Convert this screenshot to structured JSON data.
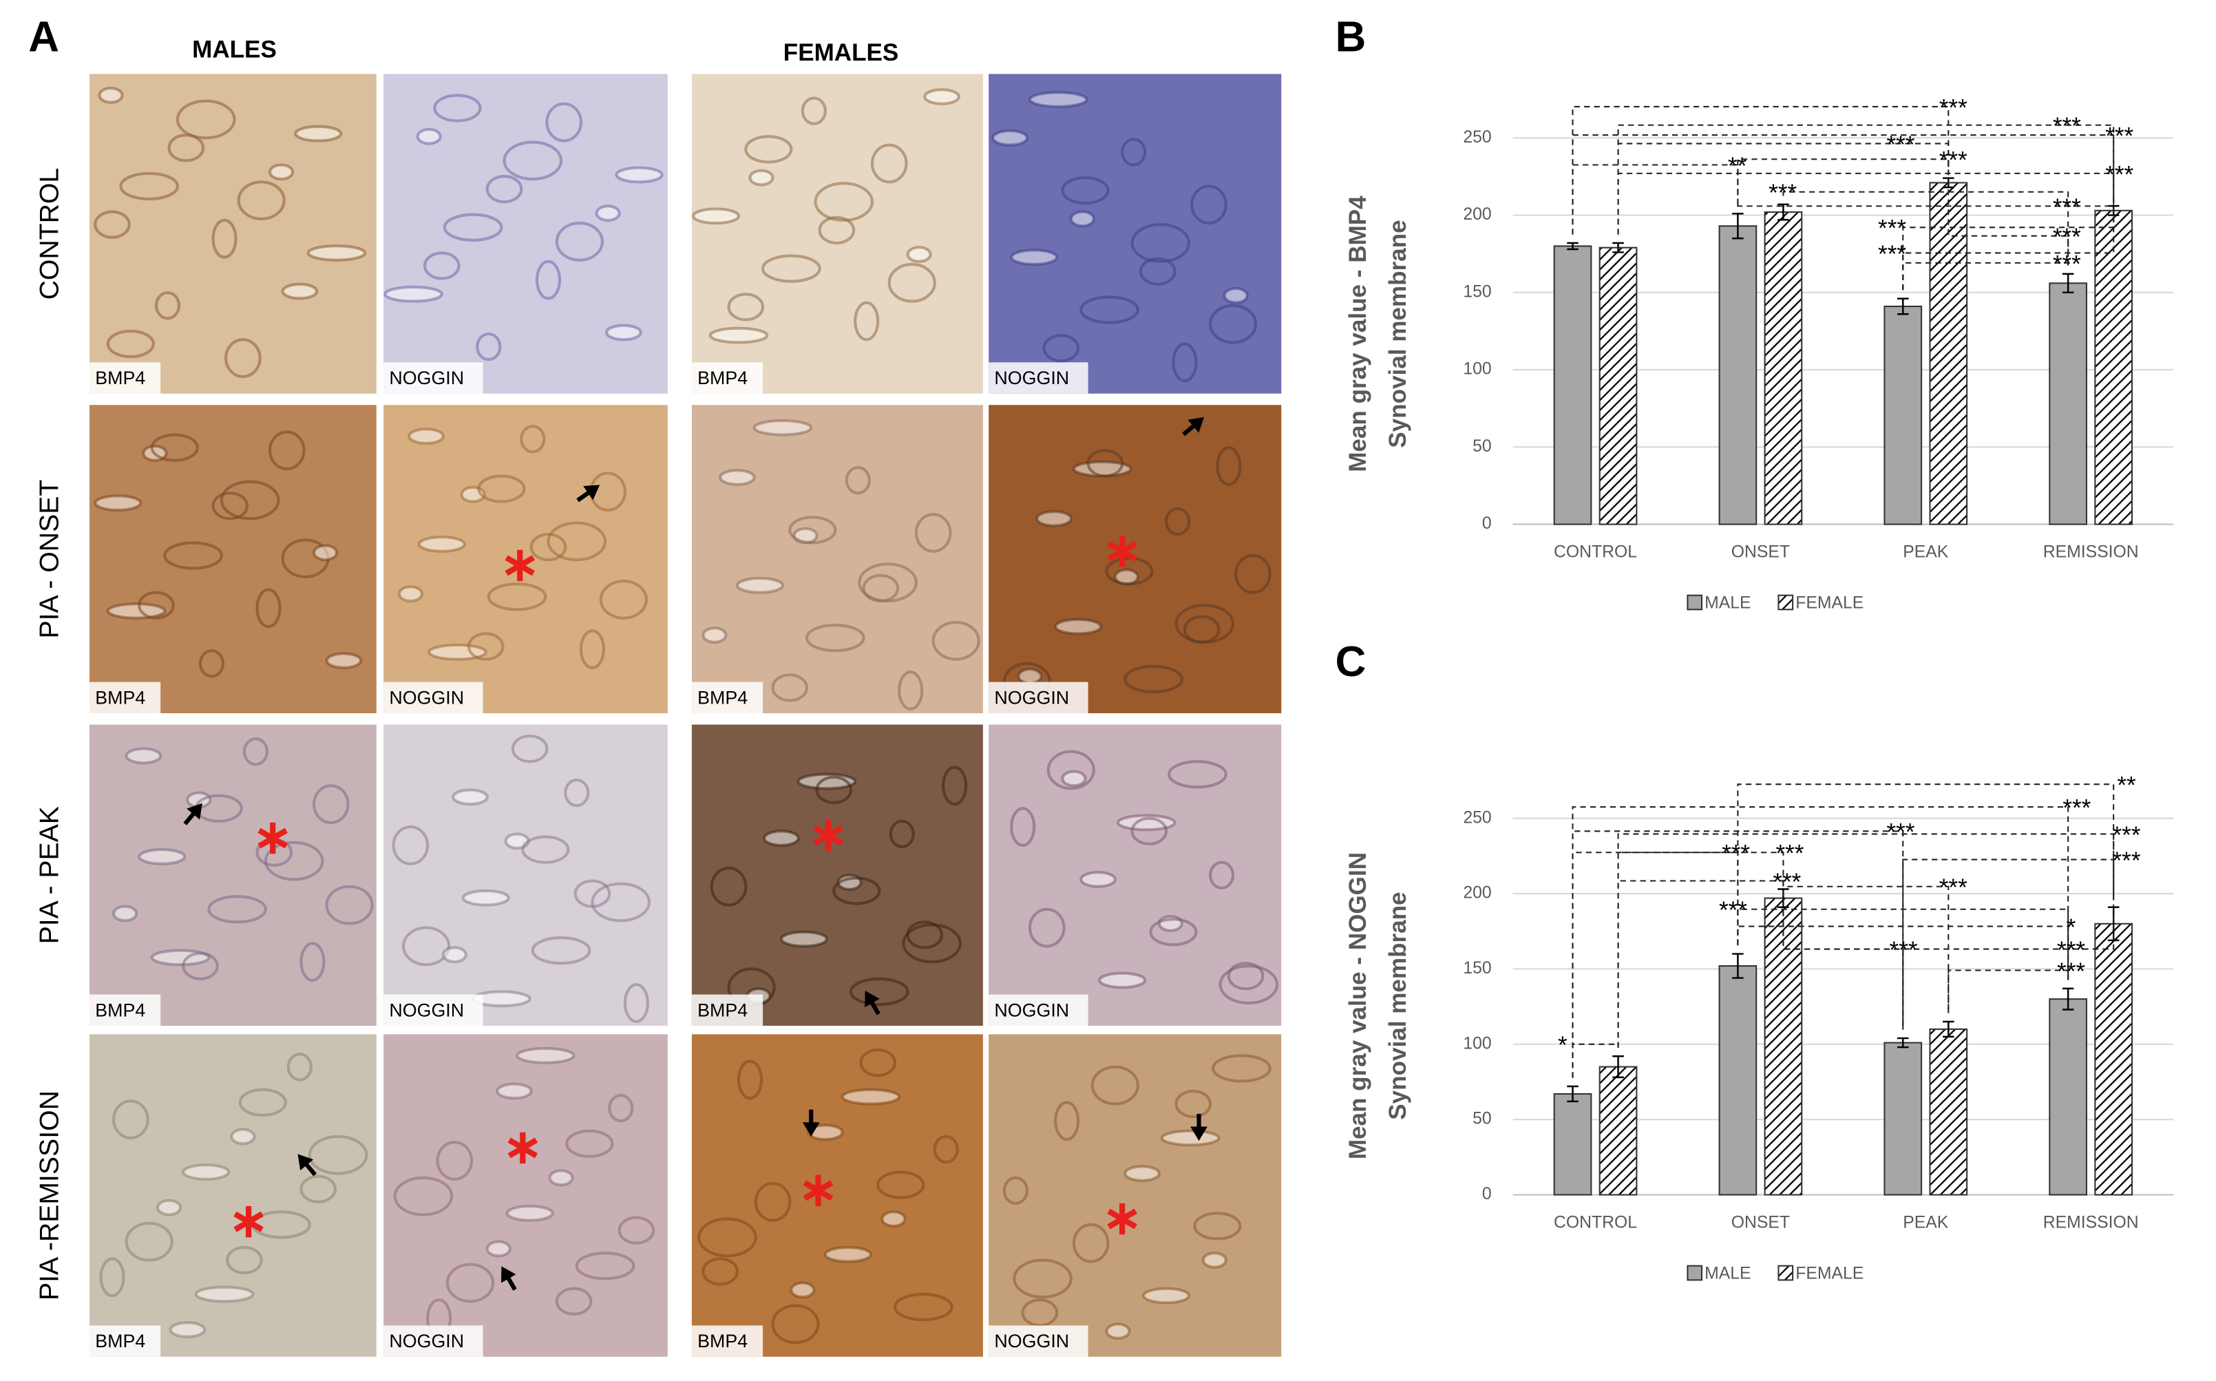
{
  "panel_a": {
    "label": "A",
    "columns": [
      "MALES",
      "FEMALES"
    ],
    "rows": [
      "CONTROL",
      "PIA - ONSET",
      "PIA - PEAK",
      "PIA -REMISSION"
    ],
    "stains": [
      "BMP4",
      "NOGGIN"
    ]
  },
  "chart_data": [
    {
      "type": "bar",
      "panel_label": "B",
      "y_label": [
        "Mean gray value - BMP4",
        "Synovial membrane"
      ],
      "categories": [
        "CONTROL",
        "ONSET",
        "PEAK",
        "REMISSION"
      ],
      "series": [
        {
          "name": "MALE",
          "color": "#a6a6a6",
          "values": [
            180,
            193,
            141,
            156
          ],
          "errors": [
            2,
            8,
            5,
            6
          ]
        },
        {
          "name": "FEMALE",
          "color": "#000000",
          "pattern": "hatch",
          "values": [
            179,
            202,
            221,
            203
          ],
          "errors": [
            3,
            5,
            3,
            3
          ]
        }
      ],
      "ylim": [
        0,
        250
      ],
      "yticks": [
        0,
        50,
        100,
        150,
        200,
        250
      ],
      "grid": true,
      "legend": "bottom",
      "annotations": [
        "***",
        "***",
        "***",
        "***",
        "***",
        "**",
        "***",
        "***",
        "***",
        "***",
        "***",
        "***",
        "***"
      ]
    },
    {
      "type": "bar",
      "panel_label": "C",
      "y_label": [
        "Mean gray value - NOGGIN",
        "Synovial membrane"
      ],
      "categories": [
        "CONTROL",
        "ONSET",
        "PEAK",
        "REMISSION"
      ],
      "series": [
        {
          "name": "MALE",
          "color": "#a6a6a6",
          "values": [
            67,
            152,
            101,
            130
          ],
          "errors": [
            5,
            8,
            3,
            7
          ]
        },
        {
          "name": "FEMALE",
          "color": "#000000",
          "pattern": "hatch",
          "values": [
            85,
            197,
            110,
            180
          ],
          "errors": [
            7,
            6,
            5,
            11
          ]
        }
      ],
      "ylim": [
        0,
        250
      ],
      "yticks": [
        0,
        50,
        100,
        150,
        200,
        250
      ],
      "grid": true,
      "legend": "bottom",
      "annotations": [
        "**",
        "***",
        "***",
        "***",
        "***",
        "***",
        "***",
        "***",
        "***",
        "***",
        "*",
        "***",
        "***",
        "***",
        "*"
      ]
    }
  ]
}
